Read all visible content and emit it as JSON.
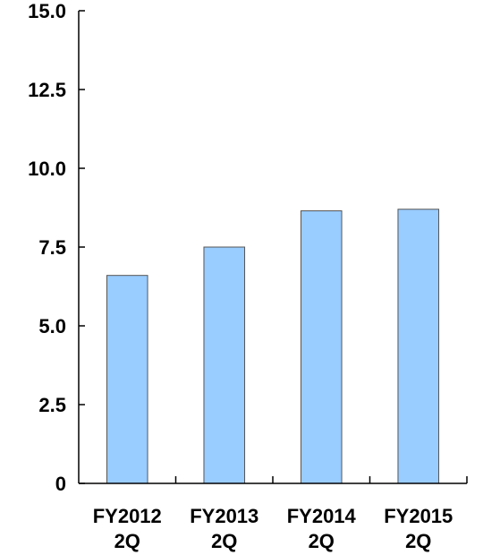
{
  "colors": {
    "bar_fill": "#99ccff",
    "bar_stroke": "#555555",
    "axis": "#000000"
  },
  "chart_data": {
    "type": "bar",
    "categories": [
      [
        "FY2012",
        "2Q"
      ],
      [
        "FY2013",
        "2Q"
      ],
      [
        "FY2014",
        "2Q"
      ],
      [
        "FY2015",
        "2Q"
      ]
    ],
    "values": [
      6.6,
      7.5,
      8.65,
      8.7
    ],
    "yticks": [
      "0",
      "2.5",
      "5.0",
      "7.5",
      "10.0",
      "12.5",
      "15.0"
    ],
    "ylim": [
      0,
      15
    ],
    "title": "",
    "xlabel": "",
    "ylabel": "",
    "grid": false,
    "legend": "none"
  }
}
